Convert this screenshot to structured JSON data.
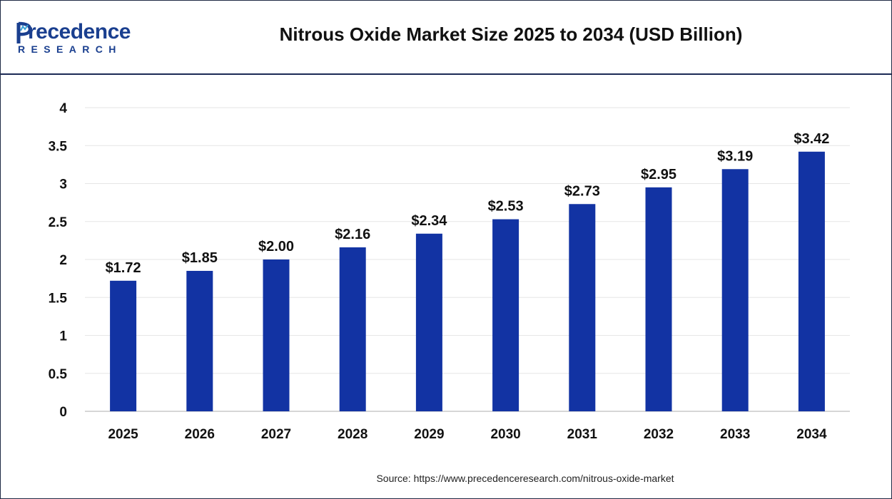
{
  "brand": {
    "name_main": "recedence",
    "name_sub": "RESEARCH"
  },
  "title": "Nitrous Oxide Market Size 2025 to 2034 (USD Billion)",
  "source": "Source: https://www.precedenceresearch.com/nitrous-oxide-market",
  "colors": {
    "bar": "#1233a3",
    "brand": "#1a3f8f",
    "header_border": "#1b2a55",
    "grid": "#e6e6e6",
    "axis": "#c8c8c8"
  },
  "chart_data": {
    "type": "bar",
    "categories": [
      "2025",
      "2026",
      "2027",
      "2028",
      "2029",
      "2030",
      "2031",
      "2032",
      "2033",
      "2034"
    ],
    "values": [
      1.72,
      1.85,
      2.0,
      2.16,
      2.34,
      2.53,
      2.73,
      2.95,
      3.19,
      3.42
    ],
    "data_labels": [
      "$1.72",
      "$1.85",
      "$2.00",
      "$2.16",
      "$2.34",
      "$2.53",
      "$2.73",
      "$2.95",
      "$3.19",
      "$3.42"
    ],
    "yticks": [
      "0",
      "0.5",
      "1",
      "1.5",
      "2",
      "2.5",
      "3",
      "3.5",
      "4"
    ],
    "ylim": [
      0,
      4
    ],
    "grid": true,
    "xlabel": "",
    "ylabel": ""
  }
}
